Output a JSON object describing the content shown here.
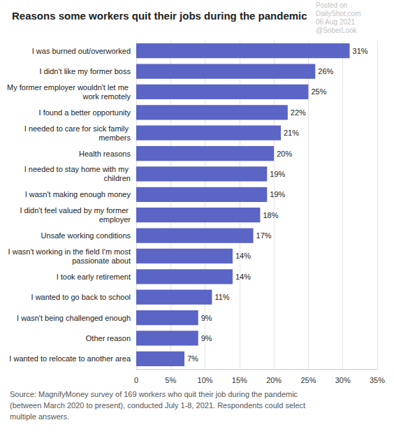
{
  "chart_data": {
    "type": "bar",
    "orientation": "horizontal",
    "title": "Reasons some workers quit their jobs during the pandemic",
    "categories": [
      "I was burned out/overworked",
      "I didn't like my former boss",
      "My former employer wouldn't let me work remotely",
      "I found a better opportunity",
      "I needed to care for sick family members",
      "Health reasons",
      "I needed to stay home with my children",
      "I wasn't making enough money",
      "I didn't feel valued by my former employer",
      "Unsafe working conditions",
      "I wasn't working in the field I'm most passionate about",
      "I took early retirement",
      "I wanted to go back to school",
      "I wasn't being challenged enough",
      "Other reason",
      "I wanted to relocate to another area"
    ],
    "values": [
      31,
      26,
      25,
      22,
      21,
      20,
      19,
      19,
      18,
      17,
      14,
      14,
      11,
      9,
      9,
      7
    ],
    "value_labels": [
      "31%",
      "26%",
      "25%",
      "22%",
      "21%",
      "20%",
      "19%",
      "19%",
      "18%",
      "17%",
      "14%",
      "14%",
      "11%",
      "9%",
      "9%",
      "7%"
    ],
    "data_labels": true,
    "color": "#5b65c6",
    "xlim": [
      0,
      35
    ],
    "xticks": [
      0,
      {
        "value": 5,
        "label": "5%"
      },
      {
        "value": 10,
        "label": "10%"
      },
      {
        "value": 15,
        "label": "15%"
      },
      {
        "value": 20,
        "label": "20%"
      },
      {
        "value": 25,
        "label": "25%"
      },
      {
        "value": 30,
        "label": "30%"
      },
      {
        "value": 35,
        "label": "35%"
      }
    ],
    "grid": true,
    "note": "Source: MagnifyMoney survey of 169 workers who quit their job during the pandemic (between March 2020 to present), conducted July 1-8, 2021. Respondents could select multiple answers.",
    "annotations": [
      "Posted on",
      "DailyShot.com",
      "06 Aug 2021",
      "@SoberLook"
    ]
  }
}
